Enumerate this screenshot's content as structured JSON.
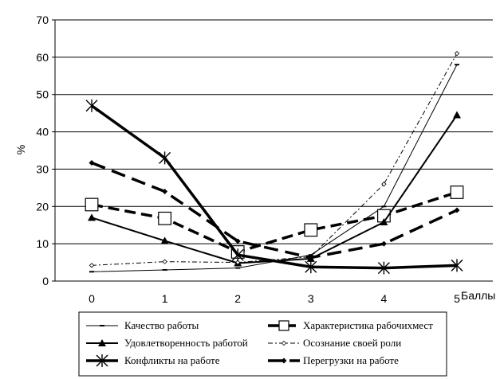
{
  "chart_data": {
    "type": "line",
    "ylabel": "%",
    "xlabel": "Баллы",
    "x": [
      "0",
      "1",
      "2",
      "3",
      "4",
      "5"
    ],
    "ylim": [
      0,
      70
    ],
    "yticks": [
      0,
      10,
      20,
      30,
      40,
      50,
      60,
      70
    ],
    "grid": "horizontal",
    "legend_position": "bottom",
    "series": [
      {
        "name": "Качество работы",
        "values": [
          2.5,
          3.0,
          3.5,
          7.0,
          20.0,
          58.0
        ],
        "style": "thin-solid",
        "marker": "dash",
        "color": "#000000"
      },
      {
        "name": "Характеристика рабочихмест",
        "values": [
          20.5,
          16.8,
          7.8,
          13.7,
          17.5,
          23.8
        ],
        "style": "thick-dashed",
        "marker": "open-square",
        "color": "#000000"
      },
      {
        "name": "Удовлетворенность работой",
        "values": [
          17.0,
          10.8,
          4.8,
          6.0,
          15.8,
          44.5
        ],
        "style": "medium-solid",
        "marker": "triangle",
        "color": "#000000"
      },
      {
        "name": "Осознание своей роли",
        "values": [
          4.2,
          5.2,
          5.0,
          6.5,
          26.0,
          61.0
        ],
        "style": "thin-dashdot",
        "marker": "small-diamond",
        "color": "#000000"
      },
      {
        "name": "Конфликты на работе",
        "values": [
          47.0,
          33.0,
          7.0,
          3.8,
          3.5,
          4.2
        ],
        "style": "thick-solid",
        "marker": "asterisk",
        "color": "#000000"
      },
      {
        "name": "Перегрузки на работе",
        "values": [
          31.7,
          24.0,
          10.7,
          6.3,
          10.0,
          19.0
        ],
        "style": "thick-longdash",
        "marker": "diamond",
        "color": "#000000"
      }
    ]
  }
}
